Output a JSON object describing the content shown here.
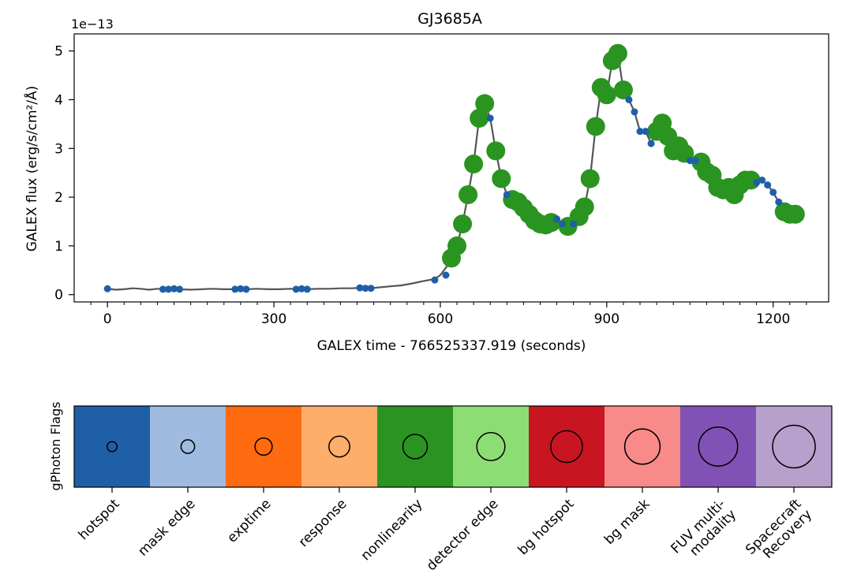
{
  "chart_data": [
    {
      "type": "scatter",
      "title": "GJ3685A",
      "xlabel": "GALEX time - 766525337.919 (seconds)",
      "ylabel": "GALEX flux (erg/s/cm²/Å)",
      "offset_label": "1e−13",
      "xlim": [
        -60,
        1300
      ],
      "ylim": [
        -0.15,
        5.35
      ],
      "xticks": [
        0,
        300,
        600,
        900,
        1200
      ],
      "xtick_labels": [
        "0",
        "300",
        "600",
        "900",
        "1200"
      ],
      "yticks": [
        0,
        1,
        2,
        3,
        4,
        5
      ],
      "ytick_labels": [
        "0",
        "1",
        "2",
        "3",
        "4",
        "5"
      ],
      "grid": false,
      "colors": {
        "line": "#555555",
        "point": "#1f5fa8",
        "flag": "#2a9421"
      },
      "line": {
        "x": [
          0,
          15,
          30,
          45,
          60,
          75,
          90,
          100,
          110,
          120,
          130,
          150,
          170,
          190,
          210,
          230,
          240,
          250,
          270,
          290,
          310,
          330,
          340,
          350,
          360,
          380,
          400,
          420,
          440,
          455,
          465,
          475,
          490,
          510,
          530,
          550,
          570,
          590,
          600,
          610,
          620,
          630,
          640,
          650,
          660,
          670,
          680,
          690,
          700,
          710,
          720,
          730,
          740,
          750,
          760,
          770,
          780,
          790,
          800,
          810,
          820,
          830,
          840,
          850,
          860,
          870,
          880,
          890,
          900,
          910,
          920,
          930,
          940,
          950,
          960,
          970,
          980,
          990,
          1000,
          1010,
          1020,
          1030,
          1040,
          1050,
          1060,
          1070,
          1080,
          1090,
          1100,
          1110,
          1120,
          1130,
          1140,
          1150,
          1160,
          1170,
          1180,
          1190,
          1200,
          1210,
          1220,
          1230,
          1240
        ],
        "y": [
          0.12,
          0.1,
          0.11,
          0.13,
          0.12,
          0.1,
          0.12,
          0.11,
          0.11,
          0.12,
          0.11,
          0.1,
          0.11,
          0.12,
          0.11,
          0.11,
          0.12,
          0.11,
          0.12,
          0.11,
          0.11,
          0.12,
          0.11,
          0.12,
          0.11,
          0.12,
          0.12,
          0.13,
          0.13,
          0.14,
          0.13,
          0.13,
          0.15,
          0.17,
          0.19,
          0.23,
          0.28,
          0.32,
          0.4,
          0.55,
          0.75,
          1.0,
          1.45,
          2.05,
          2.68,
          3.62,
          3.92,
          3.62,
          2.95,
          2.38,
          2.05,
          1.95,
          1.9,
          1.78,
          1.65,
          1.52,
          1.45,
          1.43,
          1.48,
          1.55,
          1.45,
          1.4,
          1.45,
          1.6,
          1.8,
          2.38,
          3.45,
          4.25,
          4.1,
          4.8,
          4.95,
          4.2,
          4.0,
          3.75,
          3.35,
          3.35,
          3.1,
          3.35,
          3.52,
          3.25,
          2.95,
          3.05,
          2.9,
          2.75,
          2.75,
          2.72,
          2.52,
          2.45,
          2.2,
          2.15,
          2.2,
          2.05,
          2.25,
          2.35,
          2.35,
          2.3,
          2.35,
          2.25,
          2.1,
          1.9,
          1.7,
          1.65,
          1.65
        ]
      },
      "points": {
        "x": [
          0,
          100,
          110,
          120,
          130,
          230,
          240,
          250,
          340,
          350,
          360,
          455,
          465,
          475,
          590,
          610,
          620,
          630,
          640,
          650,
          660,
          670,
          680,
          690,
          700,
          710,
          720,
          730,
          740,
          750,
          760,
          770,
          780,
          790,
          800,
          810,
          820,
          830,
          840,
          850,
          860,
          870,
          880,
          890,
          900,
          910,
          920,
          930,
          940,
          950,
          960,
          970,
          980,
          990,
          1000,
          1010,
          1020,
          1030,
          1040,
          1050,
          1060,
          1070,
          1080,
          1090,
          1100,
          1110,
          1120,
          1130,
          1140,
          1150,
          1160,
          1170,
          1180,
          1190,
          1200,
          1210,
          1220,
          1230,
          1240
        ],
        "y": [
          0.12,
          0.11,
          0.11,
          0.12,
          0.11,
          0.11,
          0.12,
          0.11,
          0.11,
          0.12,
          0.11,
          0.14,
          0.13,
          0.13,
          0.3,
          0.4,
          0.75,
          1.0,
          1.45,
          2.05,
          2.68,
          3.62,
          3.92,
          3.62,
          2.95,
          2.38,
          2.05,
          1.95,
          1.9,
          1.78,
          1.65,
          1.52,
          1.45,
          1.43,
          1.48,
          1.55,
          1.45,
          1.4,
          1.45,
          1.6,
          1.8,
          2.38,
          3.45,
          4.25,
          4.1,
          4.8,
          4.95,
          4.2,
          4.0,
          3.75,
          3.35,
          3.35,
          3.1,
          3.35,
          3.52,
          3.25,
          2.95,
          3.05,
          2.9,
          2.75,
          2.75,
          2.72,
          2.52,
          2.45,
          2.2,
          2.15,
          2.2,
          2.05,
          2.25,
          2.35,
          2.35,
          2.3,
          2.35,
          2.25,
          2.1,
          1.9,
          1.7,
          1.65,
          1.65
        ],
        "flagged": [
          false,
          false,
          false,
          false,
          false,
          false,
          false,
          false,
          false,
          false,
          false,
          false,
          false,
          false,
          false,
          false,
          true,
          true,
          true,
          true,
          true,
          true,
          true,
          false,
          true,
          true,
          false,
          true,
          true,
          true,
          true,
          true,
          true,
          true,
          true,
          false,
          false,
          true,
          false,
          true,
          true,
          true,
          true,
          true,
          true,
          true,
          true,
          true,
          false,
          false,
          false,
          false,
          false,
          true,
          true,
          true,
          true,
          true,
          true,
          false,
          false,
          true,
          true,
          true,
          true,
          true,
          true,
          true,
          true,
          true,
          true,
          false,
          false,
          false,
          false,
          false,
          true,
          true,
          true
        ]
      }
    },
    {
      "type": "table",
      "ylabel": "gPhoton Flags",
      "categories": [
        "hotspot",
        "mask edge",
        "exptime",
        "response",
        "nonlinearity",
        "detector edge",
        "bg hotspot",
        "bg mask",
        "FUV multi-\nmodality",
        "Spacecraft\nRecovery"
      ],
      "colors": [
        "#1f5fa8",
        "#9fbbe0",
        "#ff6b10",
        "#fdae6b",
        "#2a9421",
        "#8ddd75",
        "#c91422",
        "#f88a8a",
        "#8152b5",
        "#b8a0cc"
      ],
      "marker_sizes": [
        1,
        2,
        3,
        4,
        5,
        6,
        7,
        8,
        9,
        10
      ]
    }
  ]
}
